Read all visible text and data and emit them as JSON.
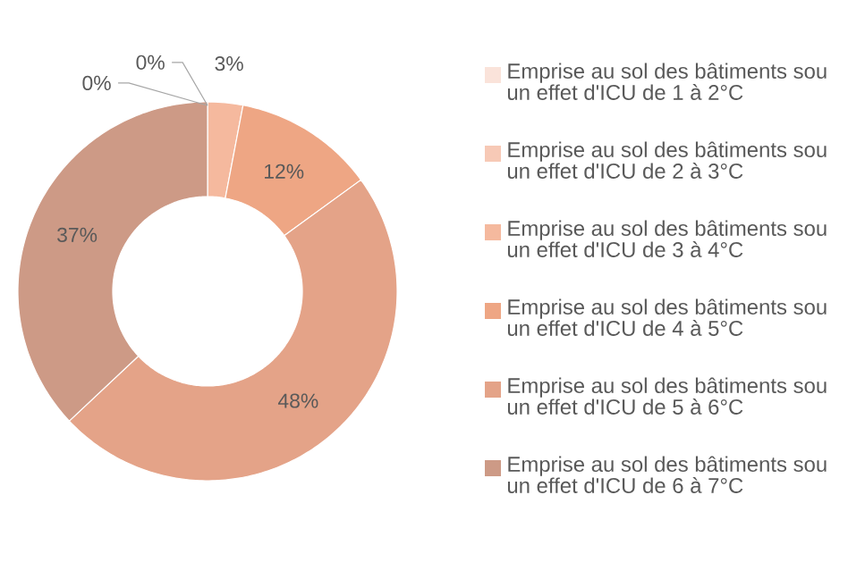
{
  "chart_data": {
    "type": "donut",
    "categories": [
      "Emprise au sol des bâtiments sou un effet d'ICU de 1 à 2°C",
      "Emprise au sol des bâtiments sou un effet d'ICU de 2 à 3°C",
      "Emprise au sol des bâtiments sou un effet d'ICU de 3 à 4°C",
      "Emprise au sol des bâtiments sou un effet d'ICU de 4 à 5°C",
      "Emprise au sol des bâtiments sou un effet d'ICU de 5 à 6°C",
      "Emprise au sol des bâtiments sou un effet d'ICU de 6 à 7°C"
    ],
    "values": [
      0,
      0,
      3,
      12,
      48,
      37
    ],
    "value_labels": [
      "0%",
      "0%",
      "3%",
      "12%",
      "48%",
      "37%"
    ],
    "colors": [
      "#fae3da",
      "#f7c9b6",
      "#f5b99e",
      "#eea684",
      "#e4a388",
      "#cd9a86"
    ],
    "legend": "right"
  }
}
